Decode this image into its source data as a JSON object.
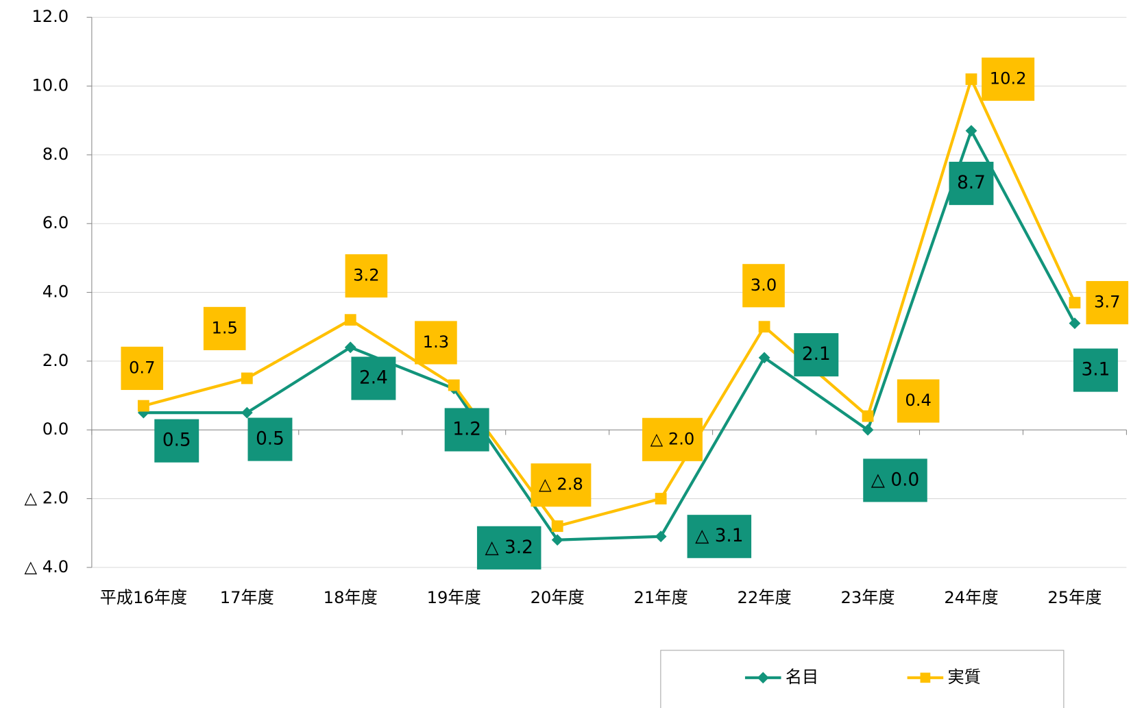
{
  "chart_data": {
    "type": "line",
    "categories": [
      "平成16年度",
      "17年度",
      "18年度",
      "19年度",
      "20年度",
      "21年度",
      "22年度",
      "23年度",
      "24年度",
      "25年度"
    ],
    "series": [
      {
        "name": "名目",
        "color": "#12947b",
        "marker": "diamond",
        "values": [
          0.5,
          0.5,
          2.4,
          1.2,
          -3.2,
          -3.1,
          2.1,
          0,
          8.7,
          3.1
        ],
        "value_labels": [
          "0.5",
          "0.5",
          "2.4",
          "1.2",
          "△ 3.2",
          "△ 3.1",
          "2.1",
          "△ 0.0",
          "8.7",
          "3.1"
        ]
      },
      {
        "name": "実質",
        "color": "#ffc000",
        "marker": "square",
        "values": [
          0.7,
          1.5,
          3.2,
          1.3,
          -2.8,
          -2.0,
          3.0,
          0.4,
          10.2,
          3.7
        ],
        "value_labels": [
          "0.7",
          "1.5",
          "3.2",
          "1.3",
          "△ 2.8",
          "△ 2.0",
          "3.0",
          "0.4",
          "10.2",
          "3.7"
        ]
      }
    ],
    "ylim": [
      -4,
      12
    ],
    "yticks": [
      {
        "value": -4,
        "label": "△ 4.0"
      },
      {
        "value": -2,
        "label": "△ 2.0"
      },
      {
        "value": 0,
        "label": "0.0"
      },
      {
        "value": 2,
        "label": "2.0"
      },
      {
        "value": 4,
        "label": "4.0"
      },
      {
        "value": 6,
        "label": "6.0"
      },
      {
        "value": 8,
        "label": "8.0"
      },
      {
        "value": 10,
        "label": "10.0"
      },
      {
        "value": 12,
        "label": "12.0"
      }
    ],
    "grid": true,
    "legend": "bottom-right"
  }
}
